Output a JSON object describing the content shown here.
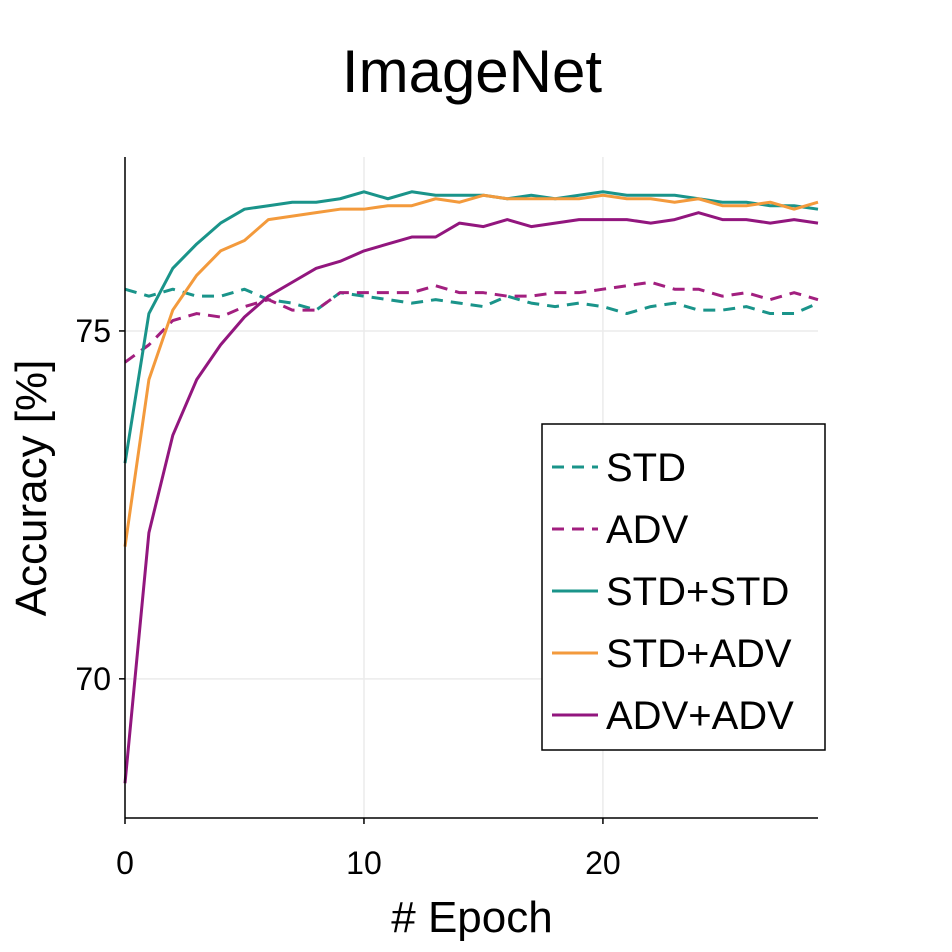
{
  "chart_data": {
    "type": "line",
    "title": "ImageNet",
    "xlabel": "# Epoch",
    "ylabel": "Accuracy [%]",
    "xlim": [
      0,
      29
    ],
    "ylim": [
      68,
      77.5
    ],
    "xticks": [
      0,
      10,
      20
    ],
    "yticks": [
      70,
      75
    ],
    "grid": true,
    "legend": "center-right",
    "x": [
      0,
      1,
      2,
      3,
      4,
      5,
      6,
      7,
      8,
      9,
      10,
      11,
      12,
      13,
      14,
      15,
      16,
      17,
      18,
      19,
      20,
      21,
      22,
      23,
      24,
      25,
      26,
      27,
      28,
      29
    ],
    "series": [
      {
        "name": "STD",
        "color": "#1a948a",
        "dash": "dashed",
        "values": [
          75.6,
          75.5,
          75.6,
          75.5,
          75.5,
          75.6,
          75.45,
          75.4,
          75.3,
          75.55,
          75.5,
          75.45,
          75.4,
          75.45,
          75.4,
          75.35,
          75.5,
          75.4,
          75.35,
          75.4,
          75.35,
          75.25,
          75.35,
          75.4,
          75.3,
          75.3,
          75.35,
          75.25,
          75.25,
          75.4
        ]
      },
      {
        "name": "ADV",
        "color": "#a21f7f",
        "dash": "dashed",
        "values": [
          74.55,
          74.8,
          75.15,
          75.25,
          75.2,
          75.35,
          75.45,
          75.3,
          75.3,
          75.55,
          75.55,
          75.55,
          75.55,
          75.65,
          75.55,
          75.55,
          75.5,
          75.5,
          75.55,
          75.55,
          75.6,
          75.65,
          75.7,
          75.6,
          75.6,
          75.5,
          75.55,
          75.45,
          75.55,
          75.45
        ]
      },
      {
        "name": "STD+STD",
        "color": "#1a948a",
        "dash": "solid",
        "values": [
          73.1,
          75.25,
          75.9,
          76.25,
          76.55,
          76.75,
          76.8,
          76.85,
          76.85,
          76.9,
          77.0,
          76.9,
          77.0,
          76.95,
          76.95,
          76.95,
          76.9,
          76.95,
          76.9,
          76.95,
          77.0,
          76.95,
          76.95,
          76.95,
          76.9,
          76.85,
          76.85,
          76.8,
          76.8,
          76.75
        ]
      },
      {
        "name": "STD+ADV",
        "color": "#f39a3c",
        "dash": "solid",
        "values": [
          71.9,
          74.3,
          75.3,
          75.8,
          76.15,
          76.3,
          76.6,
          76.65,
          76.7,
          76.75,
          76.75,
          76.8,
          76.8,
          76.9,
          76.85,
          76.95,
          76.9,
          76.9,
          76.9,
          76.9,
          76.95,
          76.9,
          76.9,
          76.85,
          76.9,
          76.8,
          76.8,
          76.85,
          76.75,
          76.85
        ]
      },
      {
        "name": "ADV+ADV",
        "color": "#92167e",
        "dash": "solid",
        "values": [
          68.5,
          72.1,
          73.5,
          74.3,
          74.8,
          75.2,
          75.5,
          75.7,
          75.9,
          76.0,
          76.15,
          76.25,
          76.35,
          76.35,
          76.55,
          76.5,
          76.6,
          76.5,
          76.55,
          76.6,
          76.6,
          76.6,
          76.55,
          76.6,
          76.7,
          76.6,
          76.6,
          76.55,
          76.6,
          76.55
        ]
      }
    ]
  }
}
